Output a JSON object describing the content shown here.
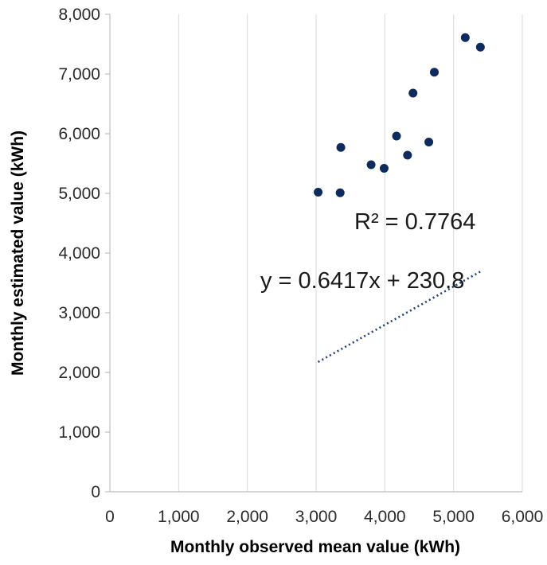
{
  "chart_data": {
    "type": "scatter",
    "title": "",
    "xlabel": "Monthly observed mean value (kWh)",
    "ylabel": "Monthly estimated value (kWh)",
    "xlim": [
      0,
      6000
    ],
    "ylim": [
      0,
      8000
    ],
    "x_ticks": [
      0,
      1000,
      2000,
      3000,
      4000,
      5000,
      6000
    ],
    "y_ticks": [
      0,
      1000,
      2000,
      3000,
      4000,
      5000,
      6000,
      7000,
      8000
    ],
    "x_tick_labels": [
      "0",
      "1,000",
      "2,000",
      "3,000",
      "4,000",
      "5,000",
      "6,000"
    ],
    "y_tick_labels": [
      "0",
      "1,000",
      "2,000",
      "3,000",
      "4,000",
      "5,000",
      "6,000",
      "7,000",
      "8,000"
    ],
    "grid": "vertical",
    "legend": "none",
    "points": [
      {
        "x": 3030,
        "y": 5020
      },
      {
        "x": 3350,
        "y": 5010
      },
      {
        "x": 3360,
        "y": 5770
      },
      {
        "x": 3800,
        "y": 5480
      },
      {
        "x": 3990,
        "y": 5420
      },
      {
        "x": 4170,
        "y": 5960
      },
      {
        "x": 4330,
        "y": 5640
      },
      {
        "x": 4410,
        "y": 6680
      },
      {
        "x": 4640,
        "y": 5860
      },
      {
        "x": 4720,
        "y": 7030
      },
      {
        "x": 5170,
        "y": 7610
      },
      {
        "x": 5390,
        "y": 7450
      }
    ],
    "trendline": {
      "type": "linear",
      "style": "dotted",
      "slope": 0.6417,
      "intercept": 230.8,
      "x_range": [
        3030,
        5390
      ]
    },
    "annotations": {
      "r_squared": "R² = 0.7764",
      "equation": "y = 0.6417x + 230.8"
    },
    "colors": {
      "points": "#0f2a5c",
      "trendline": "#1f3f7a",
      "grid": "#d9d9d9",
      "axis": "#bfbfbf"
    }
  }
}
